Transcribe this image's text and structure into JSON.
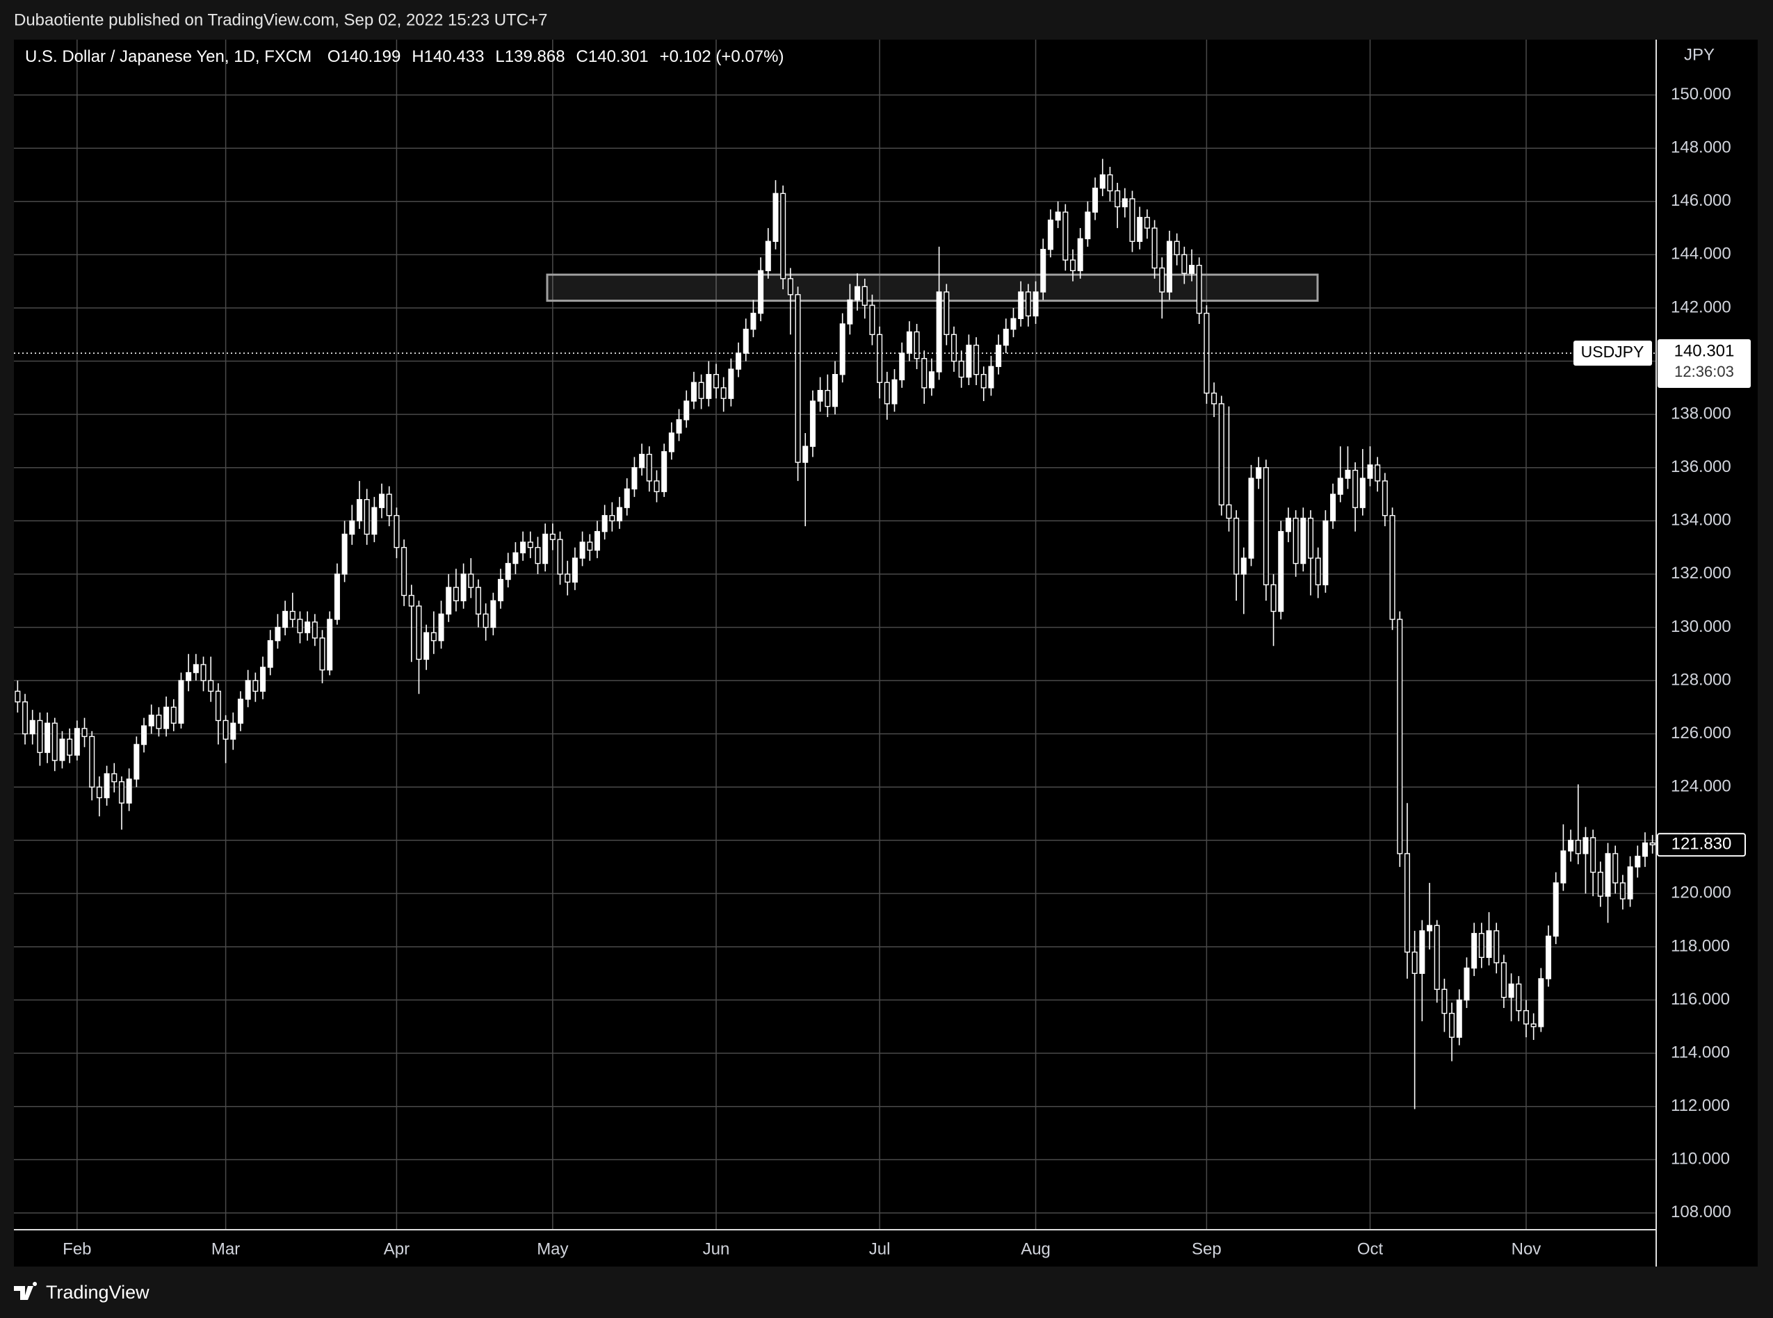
{
  "chart_data": {
    "type": "candlestick",
    "header": "Dubaotiente published on TradingView.com, Sep 02, 2022 15:23 UTC+7",
    "symbol": "U.S. Dollar / Japanese Yen, 1D, FXCM",
    "ohlc_legend": [
      {
        "label": "O",
        "value": "140.199"
      },
      {
        "label": "H",
        "value": "140.433"
      },
      {
        "label": "L",
        "value": "139.868"
      },
      {
        "label": "C",
        "value": "140.301"
      }
    ],
    "change": "+0.102 (+0.07%)",
    "y_axis_unit": "JPY",
    "footer": "TradingView",
    "categories": [
      null,
      null,
      null,
      null,
      null,
      null,
      null,
      null,
      "Feb",
      null,
      null,
      null,
      null,
      null,
      null,
      null,
      null,
      null,
      null,
      null,
      null,
      null,
      null,
      null,
      null,
      null,
      null,
      null,
      "Mar",
      null,
      null,
      null,
      null,
      null,
      null,
      null,
      null,
      null,
      null,
      null,
      null,
      null,
      null,
      null,
      null,
      null,
      null,
      null,
      null,
      null,
      null,
      "Apr",
      null,
      null,
      null,
      null,
      null,
      null,
      null,
      null,
      null,
      null,
      null,
      null,
      null,
      null,
      null,
      null,
      null,
      null,
      null,
      null,
      "May",
      null,
      null,
      null,
      null,
      null,
      null,
      null,
      null,
      null,
      null,
      null,
      null,
      null,
      null,
      null,
      null,
      null,
      null,
      null,
      null,
      null,
      "Jun",
      null,
      null,
      null,
      null,
      null,
      null,
      null,
      null,
      null,
      null,
      null,
      null,
      null,
      null,
      null,
      null,
      null,
      null,
      null,
      null,
      null,
      "Jul",
      null,
      null,
      null,
      null,
      null,
      null,
      null,
      null,
      null,
      null,
      null,
      null,
      null,
      null,
      null,
      null,
      null,
      null,
      null,
      null,
      "Aug",
      null,
      null,
      null,
      null,
      null,
      null,
      null,
      null,
      null,
      null,
      null,
      null,
      null,
      null,
      null,
      null,
      null,
      null,
      null,
      null,
      null,
      null,
      "Sep",
      null,
      null,
      null,
      null,
      null,
      null,
      null,
      null,
      null,
      null,
      null,
      null,
      null,
      null,
      null,
      null,
      null,
      null,
      null,
      null,
      null,
      "Oct",
      null,
      null,
      null,
      null,
      null,
      null,
      null,
      null,
      null,
      null,
      null,
      null,
      null,
      null,
      null,
      null,
      null,
      null,
      null,
      null,
      "Nov",
      null,
      null,
      null,
      null,
      null,
      null,
      null,
      null,
      null,
      null,
      null,
      null,
      null,
      null,
      null,
      null,
      null
    ],
    "open": [
      127.6,
      127.2,
      126.0,
      126.5,
      125.3,
      126.4,
      125.0,
      125.8,
      125.2,
      126.2,
      125.9,
      124.0,
      123.6,
      124.5,
      124.2,
      123.4,
      124.3,
      125.6,
      126.3,
      126.7,
      126.2,
      127.0,
      126.4,
      128.0,
      128.3,
      128.6,
      128.0,
      127.6,
      126.5,
      125.8,
      126.4,
      127.3,
      128.0,
      127.6,
      128.5,
      129.5,
      130.0,
      130.6,
      130.3,
      129.8,
      130.2,
      129.6,
      128.4,
      130.3,
      132.0,
      133.5,
      134.0,
      134.8,
      133.5,
      134.5,
      135.0,
      134.2,
      133.0,
      131.2,
      130.8,
      128.8,
      129.8,
      129.5,
      130.5,
      131.5,
      131.0,
      132.0,
      131.5,
      130.5,
      130.0,
      131.0,
      131.8,
      132.4,
      132.8,
      133.2,
      133.0,
      132.4,
      133.5,
      133.3,
      132.0,
      131.7,
      132.6,
      133.2,
      132.9,
      133.6,
      134.2,
      134.0,
      134.5,
      135.2,
      136.0,
      136.5,
      135.5,
      135.1,
      136.6,
      137.3,
      137.8,
      138.5,
      139.2,
      138.6,
      139.5,
      139.0,
      138.6,
      139.7,
      140.3,
      141.2,
      141.8,
      143.4,
      144.5,
      146.3,
      143.1,
      142.5,
      136.2,
      136.8,
      138.5,
      138.9,
      138.3,
      139.5,
      141.4,
      142.3,
      142.8,
      142.1,
      141.0,
      139.2,
      138.4,
      139.3,
      140.3,
      141.1,
      140.1,
      139.0,
      139.6,
      142.6,
      141.0,
      140.0,
      139.4,
      140.6,
      139.5,
      139.0,
      139.8,
      140.6,
      141.2,
      141.6,
      142.6,
      141.7,
      142.6,
      144.2,
      145.3,
      145.6,
      143.8,
      143.4,
      144.6,
      145.6,
      146.5,
      147.0,
      146.4,
      145.8,
      146.1,
      144.5,
      145.4,
      145.0,
      143.5,
      142.6,
      144.5,
      144.0,
      143.3,
      143.6,
      141.8,
      138.8,
      138.4,
      134.6,
      134.1,
      132.0,
      132.6,
      135.6,
      136.0,
      131.6,
      130.6,
      133.6,
      134.1,
      132.4,
      134.1,
      132.6,
      131.6,
      134.0,
      135.0,
      135.6,
      135.9,
      134.5,
      135.6,
      136.1,
      135.5,
      134.2,
      130.3,
      121.5,
      117.8,
      117.0,
      118.6,
      118.8,
      116.4,
      115.5,
      114.6,
      116.0,
      117.2,
      118.5,
      117.6,
      118.6,
      117.4,
      116.1,
      116.6,
      115.6,
      115.1,
      115.0,
      116.8,
      118.4,
      120.4,
      121.6,
      122.0,
      121.5,
      122.1,
      120.8,
      119.9,
      121.5,
      120.4,
      119.8,
      121.0,
      121.4,
      121.9
    ],
    "high": [
      128.0,
      127.5,
      126.9,
      126.8,
      126.8,
      126.6,
      126.1,
      126.2,
      126.5,
      126.6,
      126.1,
      124.4,
      124.8,
      124.9,
      124.4,
      124.7,
      125.9,
      126.6,
      127.1,
      127.0,
      127.4,
      127.3,
      128.3,
      129.0,
      129.0,
      128.9,
      128.9,
      127.9,
      126.7,
      126.8,
      127.6,
      128.4,
      128.3,
      128.9,
      129.9,
      130.5,
      131.0,
      131.3,
      130.6,
      130.6,
      130.5,
      129.9,
      130.6,
      132.4,
      134.0,
      134.6,
      135.5,
      135.2,
      134.9,
      135.4,
      135.3,
      134.5,
      133.3,
      131.6,
      131.0,
      130.1,
      130.6,
      131.0,
      132.0,
      132.2,
      132.4,
      132.6,
      131.8,
      130.9,
      131.3,
      132.2,
      132.8,
      133.2,
      133.6,
      133.6,
      133.4,
      133.9,
      133.9,
      133.6,
      132.5,
      133.0,
      133.6,
      133.5,
      134.0,
      134.6,
      134.7,
      134.9,
      135.6,
      136.4,
      136.9,
      136.8,
      135.9,
      136.9,
      137.7,
      138.2,
      138.9,
      139.6,
      139.5,
      140.0,
      139.9,
      139.4,
      140.1,
      140.7,
      141.6,
      142.3,
      143.9,
      145.0,
      146.8,
      146.6,
      143.5,
      142.8,
      137.3,
      138.9,
      139.4,
      139.5,
      140.0,
      141.8,
      142.9,
      143.3,
      143.1,
      142.5,
      141.3,
      139.6,
      139.7,
      140.7,
      141.5,
      141.4,
      140.4,
      140.1,
      144.3,
      142.9,
      141.3,
      140.4,
      141.0,
      140.9,
      139.8,
      140.2,
      141.0,
      141.6,
      142.0,
      143.0,
      142.9,
      143.0,
      144.6,
      145.7,
      146.0,
      145.9,
      144.2,
      145.0,
      146.0,
      146.9,
      147.6,
      147.3,
      146.7,
      146.5,
      146.4,
      145.8,
      145.7,
      145.3,
      143.9,
      144.9,
      144.8,
      144.3,
      144.2,
      143.9,
      142.1,
      139.2,
      138.7,
      138.3,
      134.4,
      133.0,
      136.1,
      136.4,
      136.3,
      132.0,
      134.0,
      134.5,
      134.4,
      134.5,
      134.4,
      133.0,
      134.4,
      135.4,
      136.8,
      136.8,
      136.2,
      136.7,
      136.8,
      136.4,
      135.8,
      134.5,
      130.6,
      123.4,
      118.6,
      119.0,
      120.4,
      119.0,
      116.8,
      115.9,
      116.4,
      117.6,
      118.9,
      118.9,
      119.3,
      118.9,
      117.7,
      117.0,
      116.9,
      116.0,
      115.5,
      117.2,
      118.8,
      120.8,
      122.6,
      122.4,
      124.1,
      122.5,
      122.4,
      121.2,
      121.9,
      121.8,
      120.7,
      121.4,
      121.8,
      122.3,
      122.2
    ],
    "low": [
      126.8,
      125.6,
      125.6,
      124.8,
      124.9,
      124.6,
      124.7,
      124.9,
      125.0,
      125.5,
      123.5,
      122.9,
      123.3,
      123.8,
      122.4,
      123.1,
      124.0,
      125.3,
      126.0,
      125.9,
      125.9,
      126.1,
      126.2,
      127.6,
      128.0,
      127.6,
      127.2,
      125.6,
      124.9,
      125.4,
      126.1,
      127.0,
      127.2,
      127.3,
      128.2,
      129.2,
      129.7,
      130.0,
      129.4,
      129.5,
      129.3,
      127.9,
      128.2,
      130.1,
      131.7,
      133.1,
      133.7,
      133.1,
      133.2,
      134.1,
      133.8,
      132.6,
      130.8,
      128.7,
      127.5,
      128.4,
      129.0,
      129.2,
      130.2,
      130.6,
      130.7,
      131.1,
      130.0,
      129.5,
      129.7,
      130.7,
      131.5,
      132.0,
      132.5,
      132.6,
      132.0,
      132.1,
      132.9,
      131.6,
      131.2,
      131.4,
      132.3,
      132.5,
      132.6,
      133.3,
      133.6,
      133.7,
      134.2,
      134.9,
      135.7,
      135.1,
      134.7,
      134.9,
      136.3,
      137.0,
      137.5,
      138.2,
      138.2,
      138.3,
      138.6,
      138.1,
      138.3,
      139.4,
      140.0,
      140.9,
      141.5,
      143.1,
      144.2,
      142.7,
      141.0,
      135.5,
      133.8,
      136.4,
      138.1,
      137.9,
      138.0,
      139.2,
      141.0,
      141.9,
      141.6,
      140.6,
      138.6,
      137.8,
      138.1,
      139.0,
      140.0,
      139.7,
      138.4,
      138.7,
      139.3,
      140.6,
      139.6,
      139.0,
      139.1,
      139.1,
      138.5,
      138.7,
      139.5,
      140.3,
      140.9,
      141.3,
      141.3,
      141.4,
      142.3,
      143.9,
      145.0,
      143.4,
      143.0,
      143.1,
      144.3,
      145.3,
      146.2,
      146.0,
      145.0,
      145.4,
      144.1,
      144.2,
      144.6,
      143.1,
      141.6,
      142.3,
      143.6,
      142.9,
      143.0,
      141.4,
      138.4,
      137.9,
      134.2,
      133.6,
      131.0,
      130.5,
      132.3,
      135.2,
      131.0,
      129.3,
      130.3,
      133.2,
      131.9,
      132.1,
      131.2,
      131.1,
      131.3,
      133.7,
      134.7,
      135.2,
      133.6,
      134.2,
      135.3,
      135.1,
      133.8,
      129.9,
      121.0,
      116.8,
      111.9,
      115.2,
      117.9,
      115.9,
      114.8,
      113.7,
      114.3,
      115.7,
      116.9,
      117.2,
      117.3,
      117.0,
      115.7,
      115.2,
      115.2,
      114.6,
      114.5,
      114.8,
      116.5,
      118.1,
      120.1,
      121.2,
      121.1,
      120.0,
      119.9,
      119.5,
      118.9,
      120.0,
      119.4,
      119.5,
      120.6,
      121.0,
      121.5
    ],
    "close": [
      127.2,
      126.0,
      126.5,
      125.3,
      126.4,
      125.0,
      125.8,
      125.2,
      126.2,
      125.9,
      124.0,
      123.6,
      124.5,
      124.2,
      123.4,
      124.3,
      125.6,
      126.3,
      126.7,
      126.2,
      127.0,
      126.4,
      128.0,
      128.3,
      128.6,
      128.0,
      127.6,
      126.5,
      125.8,
      126.4,
      127.3,
      128.0,
      127.6,
      128.5,
      129.5,
      130.0,
      130.6,
      130.3,
      129.8,
      130.2,
      129.6,
      128.4,
      130.3,
      132.0,
      133.5,
      134.0,
      134.8,
      133.5,
      134.5,
      135.0,
      134.2,
      133.0,
      131.2,
      130.8,
      128.8,
      129.8,
      129.5,
      130.5,
      131.5,
      131.0,
      132.0,
      131.5,
      130.5,
      130.0,
      131.0,
      131.8,
      132.4,
      132.8,
      133.2,
      133.0,
      132.4,
      133.5,
      133.3,
      132.0,
      131.7,
      132.6,
      133.2,
      132.9,
      133.6,
      134.2,
      134.0,
      134.5,
      135.2,
      136.0,
      136.5,
      135.5,
      135.1,
      136.6,
      137.3,
      137.8,
      138.5,
      139.2,
      138.6,
      139.5,
      139.0,
      138.6,
      139.7,
      140.3,
      141.2,
      141.8,
      143.4,
      144.5,
      146.3,
      143.1,
      142.5,
      136.2,
      136.8,
      138.5,
      138.9,
      138.3,
      139.5,
      141.4,
      142.3,
      142.8,
      142.1,
      141.0,
      139.2,
      138.4,
      139.3,
      140.3,
      141.1,
      140.1,
      139.0,
      139.6,
      142.6,
      141.0,
      140.0,
      139.4,
      140.6,
      139.5,
      139.0,
      139.8,
      140.6,
      141.2,
      141.6,
      142.6,
      141.7,
      142.6,
      144.2,
      145.3,
      145.6,
      143.8,
      143.4,
      144.6,
      145.6,
      146.5,
      147.0,
      146.4,
      145.8,
      146.1,
      144.5,
      145.4,
      145.0,
      143.5,
      142.6,
      144.5,
      144.0,
      143.3,
      143.6,
      141.8,
      138.8,
      138.4,
      134.6,
      134.1,
      132.0,
      132.6,
      135.6,
      136.0,
      131.6,
      130.6,
      133.6,
      134.1,
      132.4,
      134.1,
      132.6,
      131.6,
      134.0,
      135.0,
      135.6,
      135.9,
      134.5,
      135.6,
      136.1,
      135.5,
      134.2,
      130.3,
      121.5,
      117.8,
      117.0,
      118.6,
      118.8,
      116.4,
      115.5,
      114.6,
      116.0,
      117.2,
      118.5,
      117.6,
      118.6,
      117.4,
      116.1,
      116.6,
      115.6,
      115.1,
      115.0,
      116.8,
      118.4,
      120.4,
      121.6,
      122.0,
      121.5,
      122.1,
      120.8,
      119.9,
      121.5,
      120.4,
      119.8,
      121.0,
      121.4,
      121.9,
      121.83
    ],
    "color_up": "#ffffff",
    "color_down": "#000000",
    "color_wick": "#ffffff",
    "ylim": [
      107.37,
      152.08
    ],
    "yticks": [
      {
        "value": 108,
        "label": "108.000"
      },
      {
        "value": 110,
        "label": "110.000"
      },
      {
        "value": 112,
        "label": "112.000"
      },
      {
        "value": 114,
        "label": "114.000"
      },
      {
        "value": 116,
        "label": "116.000"
      },
      {
        "value": 118,
        "label": "118.000"
      },
      {
        "value": 120,
        "label": "120.000"
      },
      {
        "value": 122,
        "label": "122.000"
      },
      {
        "value": 124,
        "label": "124.000"
      },
      {
        "value": 126,
        "label": "126.000"
      },
      {
        "value": 128,
        "label": "128.000"
      },
      {
        "value": 130,
        "label": "130.000"
      },
      {
        "value": 132,
        "label": "132.000"
      },
      {
        "value": 134,
        "label": "134.000"
      },
      {
        "value": 136,
        "label": "136.000"
      },
      {
        "value": 138,
        "label": "138.000"
      },
      {
        "value": 140,
        "label": "140.000"
      },
      {
        "value": 142,
        "label": "142.000"
      },
      {
        "value": 144,
        "label": "144.000"
      },
      {
        "value": 146,
        "label": "146.000"
      },
      {
        "value": 148,
        "label": "148.000"
      },
      {
        "value": 150,
        "label": "150.000"
      }
    ],
    "grid": true,
    "price_line": {
      "value": 140.301,
      "symbol": "USDJPY",
      "countdown": "12:36:03"
    },
    "last_price": {
      "value": 121.83,
      "label": "121.830"
    },
    "zone": [
      142.27,
      143.25
    ]
  }
}
